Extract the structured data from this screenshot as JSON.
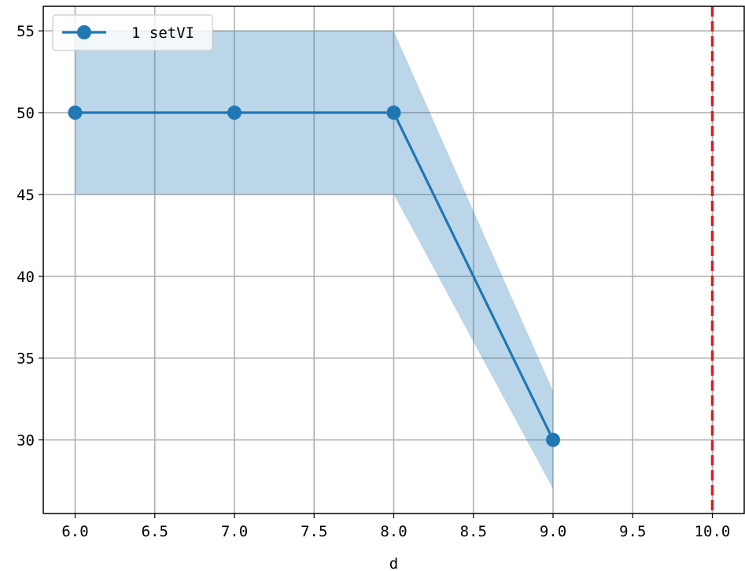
{
  "chart_data": {
    "type": "line",
    "title": "",
    "xlabel": "d",
    "ylabel": "",
    "xlim": [
      5.8,
      10.2
    ],
    "ylim": [
      25.5,
      56.5
    ],
    "grid": true,
    "legend_position": "top-left",
    "x_ticks": [
      6.0,
      6.5,
      7.0,
      7.5,
      8.0,
      8.5,
      9.0,
      9.5,
      10.0
    ],
    "x_tick_labels": [
      "6.0",
      "6.5",
      "7.0",
      "7.5",
      "8.0",
      "8.5",
      "9.0",
      "9.5",
      "10.0"
    ],
    "y_ticks": [
      30,
      35,
      40,
      45,
      50,
      55
    ],
    "y_tick_labels": [
      "30",
      "35",
      "40",
      "45",
      "50",
      "55"
    ],
    "series": [
      {
        "name": "1 setVI",
        "color": "#1f77b4",
        "x": [
          6.0,
          7.0,
          8.0,
          9.0
        ],
        "y": [
          50,
          50,
          50,
          30
        ],
        "band_lower": [
          45,
          45,
          45,
          27
        ],
        "band_upper": [
          55,
          55,
          55,
          33
        ],
        "band_color": "#1f77b4"
      }
    ],
    "reference_lines": [
      {
        "orientation": "vertical",
        "x": 10.0,
        "color": "#e31a1c",
        "style": "dashed"
      }
    ]
  }
}
